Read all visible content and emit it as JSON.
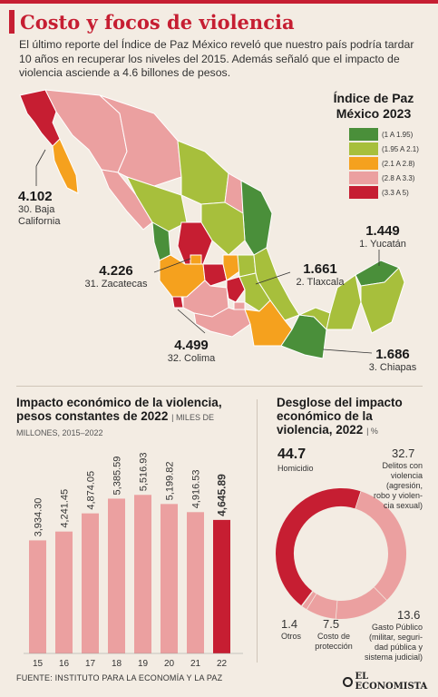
{
  "header": {
    "title": "Costo y focos de violencia",
    "intro": "El último reporte del Índice de Paz México reveló que nuestro país podría tardar 10 años en recuperar los niveles del 2015. Además señaló que el impacto de violencia asciende a 4.6 billones de pesos."
  },
  "legend": {
    "title_line1": "Índice de Paz",
    "title_line2": "México 2023",
    "items": [
      {
        "label": "(1 A 1.95)",
        "color": "#4a8f3a"
      },
      {
        "label": "(1.95 A 2.1)",
        "color": "#a7bf3c"
      },
      {
        "label": "(2.1 A 2.8)",
        "color": "#f5a11e"
      },
      {
        "label": "(2.8 A 3.3)",
        "color": "#eba0a0"
      },
      {
        "label": "(3.3 A 5)",
        "color": "#c61e32"
      }
    ]
  },
  "callouts": [
    {
      "value": "4.102",
      "label": "30. Baja California"
    },
    {
      "value": "4.226",
      "label": "31. Zacatecas"
    },
    {
      "value": "4.499",
      "label": "32. Colima"
    },
    {
      "value": "1.449",
      "label": "1. Yucatán"
    },
    {
      "value": "1.661",
      "label": "2. Tlaxcala"
    },
    {
      "value": "1.686",
      "label": "3. Chiapas"
    }
  ],
  "impact": {
    "title": "Impacto económico de la violencia, pesos constantes de 2022",
    "unit": "MILES DE MILLONES, 2015–2022"
  },
  "chart_data": [
    {
      "type": "bar",
      "categories": [
        "15",
        "16",
        "17",
        "18",
        "19",
        "20",
        "21",
        "22"
      ],
      "values": [
        3934.3,
        4241.45,
        4874.05,
        5385.59,
        5516.93,
        5199.82,
        4916.53,
        4645.89
      ],
      "value_labels": [
        "3,934.30",
        "4,241.45",
        "4,874.05",
        "5,385.59",
        "5,516.93",
        "5,199.82",
        "4,916.53",
        "4,645.89"
      ],
      "title": "Impacto económico de la violencia, pesos constantes de 2022",
      "ylabel": "MILES DE MILLONES, 2015–2022",
      "colors": {
        "default": "#eba0a0",
        "highlight": "#c61e32"
      },
      "highlight_index": 7
    },
    {
      "type": "pie",
      "title": "Desglose del impacto económico de la violencia, 2022",
      "unit": "%",
      "slices": [
        {
          "label": "Homicidio",
          "value": 44.7,
          "color": "#c61e32"
        },
        {
          "label": "Delitos con violencia (agresión, robo y violencia sexual)",
          "value": 32.7,
          "color": "#eba0a0"
        },
        {
          "label": "Gasto Público (militar, seguridad pública y sistema judicial)",
          "value": 13.6,
          "color": "#eba0a0"
        },
        {
          "label": "Costo de protección",
          "value": 7.5,
          "color": "#eba0a0"
        },
        {
          "label": "Otros",
          "value": 1.4,
          "color": "#eba0a0"
        }
      ]
    }
  ],
  "breakdown": {
    "title": "Desglose del impacto económico de la violencia, 2022",
    "unit": "%",
    "labels": {
      "homicidio_val": "44.7",
      "homicidio": "Homicidio",
      "delitos_val": "32.7",
      "delitos_1": "Delitos con",
      "delitos_2": "violencia",
      "delitos_3": "(agresión,",
      "delitos_4": "robo y violen-",
      "delitos_5": "cia sexual)",
      "gasto_val": "13.6",
      "gasto_1": "Gasto Público",
      "gasto_2": "(militar, seguri-",
      "gasto_3": "dad pública y",
      "gasto_4": "sistema judicial)",
      "costo_val": "7.5",
      "costo_1": "Costo de",
      "costo_2": "protección",
      "otros_val": "1.4",
      "otros": "Otros"
    }
  },
  "footer": {
    "source": "FUENTE: INSTITUTO PARA LA ECONOMÍA Y LA PAZ",
    "logo": "EL ECONOMISTA"
  }
}
